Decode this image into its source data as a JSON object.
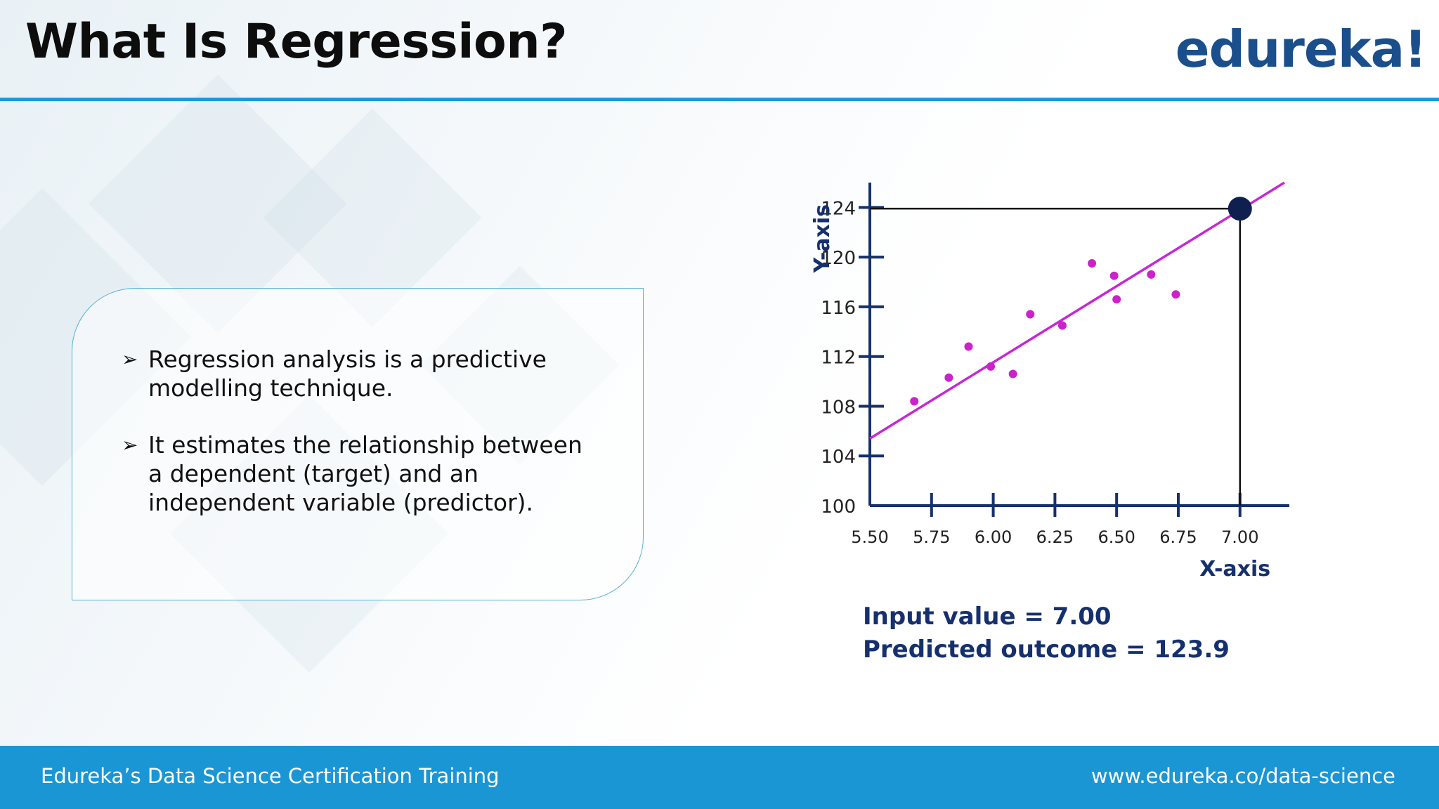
{
  "slide": {
    "title": "What Is Regression?",
    "logo": "edureka!"
  },
  "bullets": [
    {
      "icon": "arrow-bullet-icon",
      "text": "Regression analysis is a predictive modelling technique."
    },
    {
      "icon": "arrow-bullet-icon",
      "text": "It estimates the relationship between a dependent (target) and an independent variable (predictor)."
    }
  ],
  "chart_data": {
    "type": "scatter",
    "xlabel": "X-axis",
    "ylabel": "Y-axis",
    "xlim": [
      5.5,
      7.2
    ],
    "ylim": [
      100,
      126
    ],
    "x_ticks": [
      "5.50",
      "5.75",
      "6.00",
      "6.25",
      "6.50",
      "6.75",
      "7.00"
    ],
    "y_ticks": [
      "100",
      "104",
      "108",
      "112",
      "116",
      "120",
      "124"
    ],
    "grid": false,
    "points": [
      {
        "x": 5.68,
        "y": 108.4
      },
      {
        "x": 5.82,
        "y": 110.3
      },
      {
        "x": 5.9,
        "y": 112.8
      },
      {
        "x": 5.99,
        "y": 111.2
      },
      {
        "x": 6.08,
        "y": 110.6
      },
      {
        "x": 6.15,
        "y": 115.4
      },
      {
        "x": 6.28,
        "y": 114.5
      },
      {
        "x": 6.4,
        "y": 119.5
      },
      {
        "x": 6.49,
        "y": 118.5
      },
      {
        "x": 6.5,
        "y": 116.6
      },
      {
        "x": 6.64,
        "y": 118.6
      },
      {
        "x": 6.74,
        "y": 117.0
      }
    ],
    "regression_line": {
      "x": [
        5.5,
        7.18
      ],
      "y": [
        105.4,
        126.0
      ]
    },
    "prediction": {
      "x": 7.0,
      "y": 123.9
    },
    "colors": {
      "points": "#cc22cc",
      "line": "#c726d6",
      "axis": "#16306e",
      "marker": "#0f1f4f"
    }
  },
  "result": {
    "input_label": "Input value = 7.00",
    "predicted_label": "Predicted outcome = 123.9"
  },
  "footer": {
    "left": "Edureka’s Data Science Certification Training",
    "right": "www.edureka.co/data-science"
  }
}
